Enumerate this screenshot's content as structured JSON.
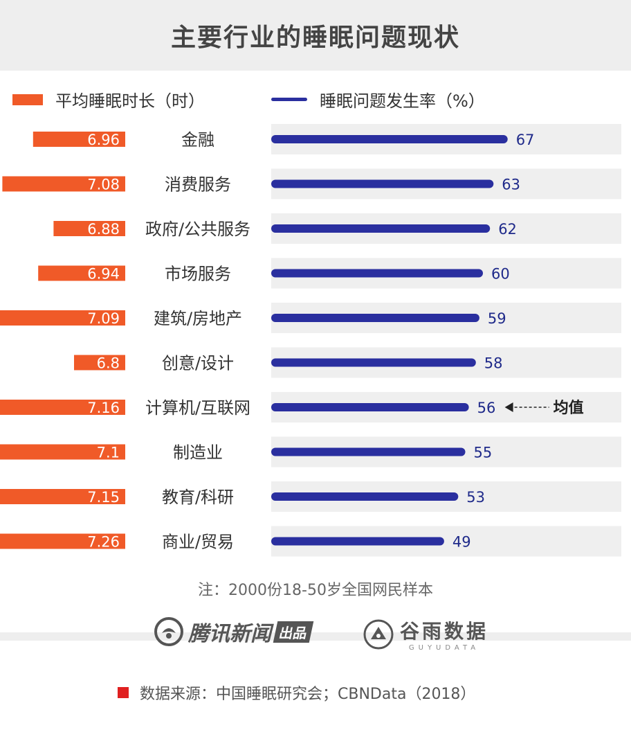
{
  "header": {
    "title": "主要行业的睡眠问题现状"
  },
  "legend": {
    "orange_label": "平均睡眠时长（时）",
    "blue_label": "睡眠问题发生率（%）"
  },
  "chart_data": {
    "type": "bar",
    "title": "主要行业的睡眠问题现状",
    "categories": [
      "金融",
      "消费服务",
      "政府/公共服务",
      "市场服务",
      "建筑/房地产",
      "创意/设计",
      "计算机/互联网",
      "制造业",
      "教育/科研",
      "商业/贸易"
    ],
    "series": [
      {
        "name": "平均睡眠时长（时）",
        "values": [
          6.96,
          7.08,
          6.88,
          6.94,
          7.09,
          6.8,
          7.16,
          7.1,
          7.15,
          7.26
        ]
      },
      {
        "name": "睡眠问题发生率（%）",
        "values": [
          67,
          63,
          62,
          60,
          59,
          58,
          56,
          55,
          53,
          49
        ]
      }
    ],
    "annotation": {
      "category": "计算机/互联网",
      "text": "均值"
    },
    "colors": {
      "sleep_hours": "#f05a28",
      "problem_rate": "#2a2f9f",
      "track": "#efefef"
    },
    "grid": false
  },
  "note": "注：2000份18-50岁全国网民样本",
  "brands": {
    "brand1": "腾讯新闻",
    "brand1_tag": "出品",
    "brand2": "谷雨数据",
    "brand2_sub": "GUYUDATA"
  },
  "footer": {
    "source": "数据来源：中国睡眠研究会；CBNData（2018）"
  }
}
